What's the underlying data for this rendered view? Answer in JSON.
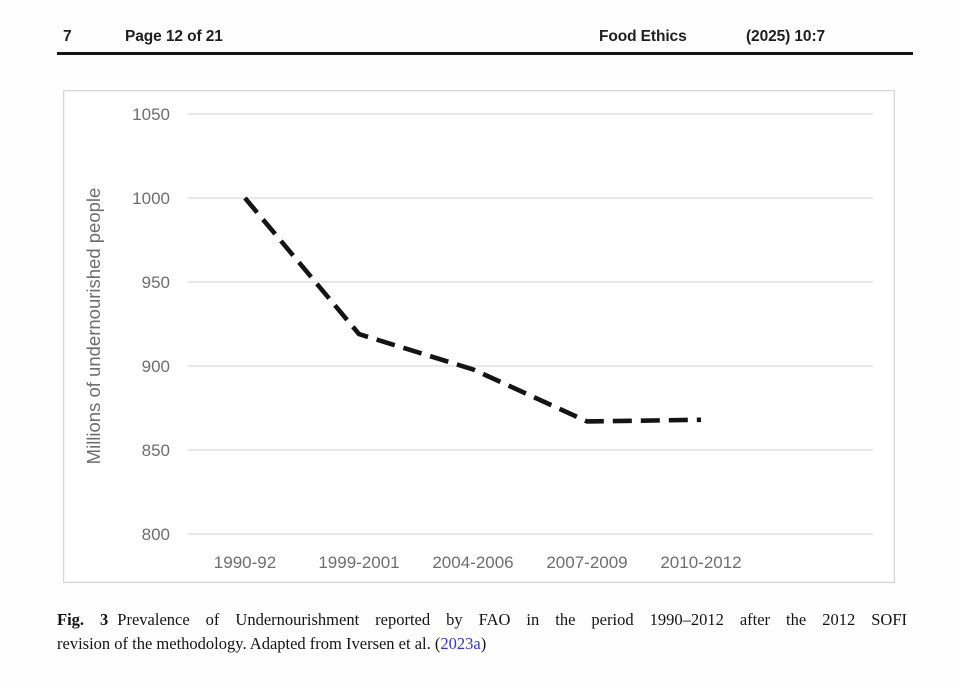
{
  "header": {
    "article_no": "7",
    "page_info": "Page 12 of 21",
    "journal": "Food Ethics",
    "citation": "(2025) 10:7"
  },
  "caption": {
    "label": "Fig. 3",
    "line1": "Prevalence of Undernourishment reported by FAO in the period 1990–2012 after the 2012 SOFI",
    "line2_prefix": "revision of the methodology. Adapted from Iversen et al. (",
    "link_text": "2023a",
    "line2_suffix": ")",
    "link_color": "#3333cc"
  },
  "chart_data": {
    "type": "line",
    "title": "",
    "xlabel": "",
    "ylabel": "Millions of undernourished people",
    "categories": [
      "1990-92",
      "1999-2001",
      "2004-2006",
      "2007-2009",
      "2010-2012"
    ],
    "series": [
      {
        "name": "Millions of undernourished people",
        "values": [
          1000,
          919,
          898,
          867,
          868
        ]
      }
    ],
    "ylim": [
      800,
      1050
    ],
    "yticks": [
      1050,
      1000,
      950,
      900,
      850,
      800
    ],
    "grid": true,
    "legend_position": "none",
    "line_style": "dashed",
    "line_color": "#141414",
    "grid_color": "#dadada",
    "tick_color": "#6e6e6e"
  }
}
